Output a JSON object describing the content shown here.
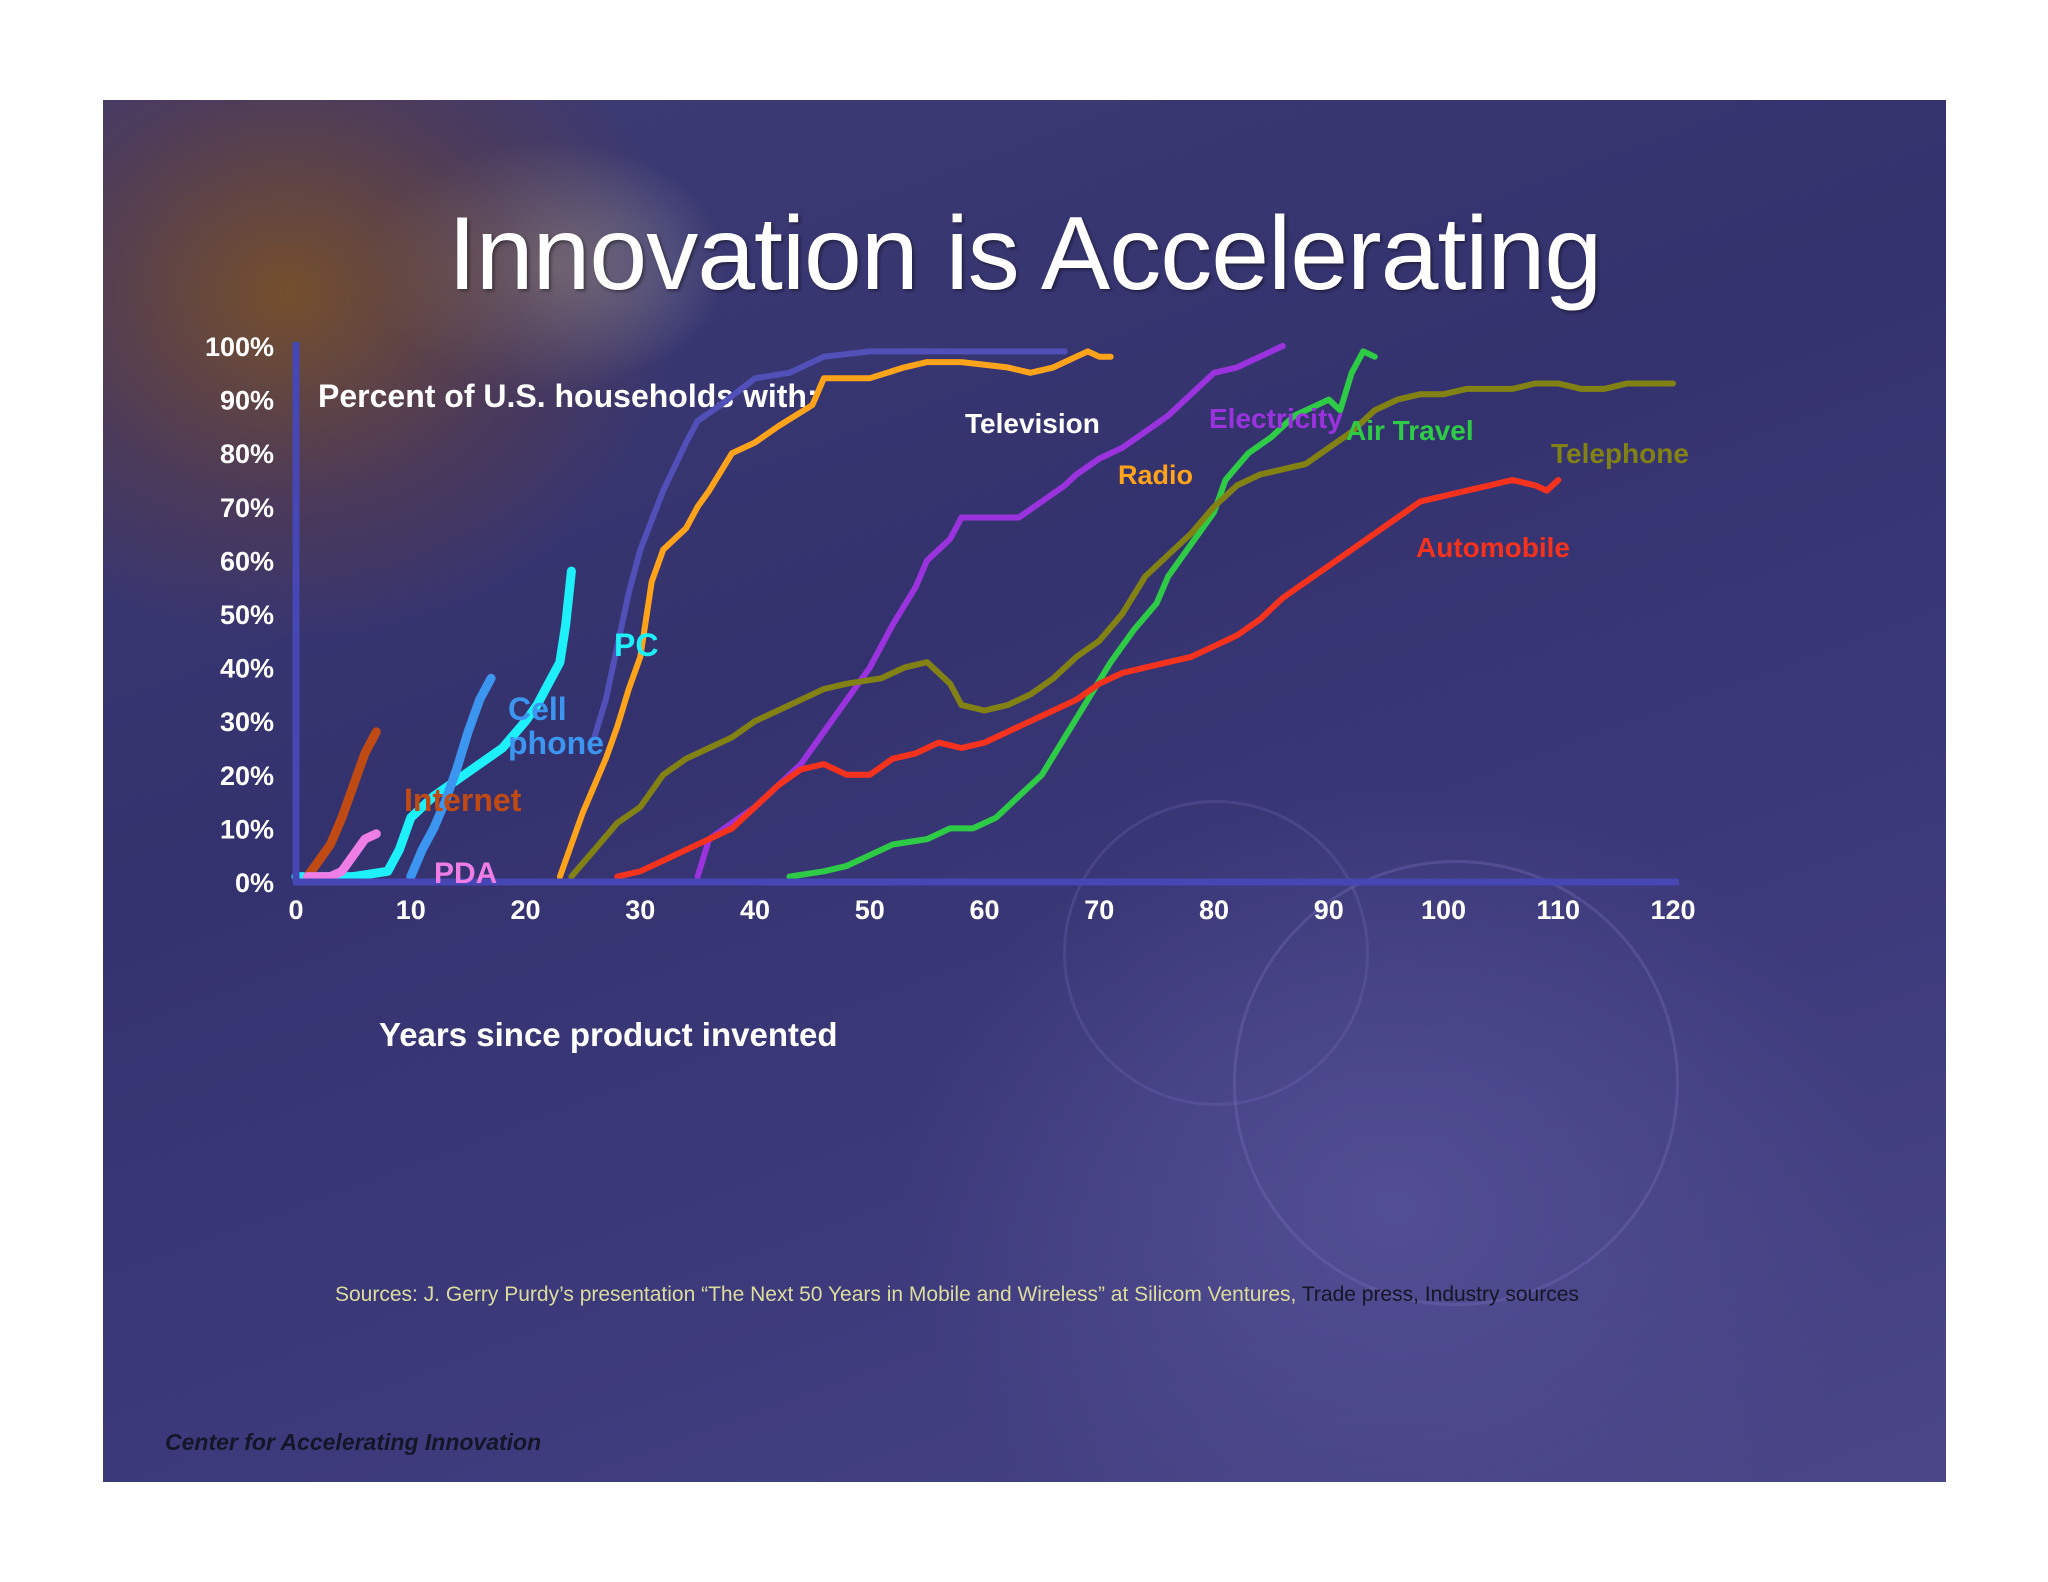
{
  "slide": {
    "title": "Innovation is Accelerating",
    "sources": {
      "main": "Sources:  J. Gerry Purdy’s presentation “The Next 50 Years in Mobile and Wireless” at Silicom Ventures,",
      "trade": " Trade press",
      "sep": ",",
      "industry": " Industry sources"
    },
    "footer": "Center for Accelerating Innovation"
  },
  "chart_data": {
    "type": "line",
    "title": "Percent of U.S. households with:",
    "xlabel": "Years since product invented",
    "ylabel": "",
    "xlim": [
      0,
      120
    ],
    "ylim": [
      0,
      100
    ],
    "x_ticks": [
      0,
      10,
      20,
      30,
      40,
      50,
      60,
      70,
      80,
      90,
      100,
      110,
      120
    ],
    "y_ticks": [
      0,
      10,
      20,
      30,
      40,
      50,
      60,
      70,
      80,
      90,
      100
    ],
    "x_tick_labels": [
      "0",
      "10",
      "20",
      "30",
      "40",
      "50",
      "60",
      "70",
      "80",
      "90",
      "100",
      "110",
      "120"
    ],
    "y_tick_labels": [
      "0%",
      "10%",
      "20%",
      "30%",
      "40%",
      "50%",
      "60%",
      "70%",
      "80%",
      "90%",
      "100%"
    ],
    "axis_color": "#4646b4",
    "series": [
      {
        "name": "Television",
        "label_lines": [
          "Television"
        ],
        "color": "#5050b8",
        "points": [
          [
            26,
            27
          ],
          [
            27,
            34
          ],
          [
            28,
            44
          ],
          [
            29,
            54
          ],
          [
            30,
            62
          ],
          [
            32,
            73
          ],
          [
            34,
            82
          ],
          [
            35,
            86
          ],
          [
            37,
            89
          ],
          [
            40,
            94
          ],
          [
            43,
            95
          ],
          [
            46,
            98
          ],
          [
            50,
            99
          ],
          [
            55,
            99
          ],
          [
            62,
            99
          ],
          [
            67,
            99
          ]
        ]
      },
      {
        "name": "Radio",
        "label_lines": [
          "Radio"
        ],
        "color": "#ffa31a",
        "points": [
          [
            23,
            1
          ],
          [
            25,
            13
          ],
          [
            27,
            23
          ],
          [
            28,
            29
          ],
          [
            29,
            36
          ],
          [
            30,
            42
          ],
          [
            31,
            56
          ],
          [
            32,
            62
          ],
          [
            34,
            66
          ],
          [
            35,
            70
          ],
          [
            36,
            73
          ],
          [
            38,
            80
          ],
          [
            40,
            82
          ],
          [
            42,
            85
          ],
          [
            45,
            89
          ],
          [
            46,
            94
          ],
          [
            50,
            94
          ],
          [
            53,
            96
          ],
          [
            55,
            97
          ],
          [
            58,
            97
          ],
          [
            62,
            96
          ],
          [
            64,
            95
          ],
          [
            66,
            96
          ],
          [
            68,
            98
          ],
          [
            69,
            99
          ],
          [
            70,
            98
          ],
          [
            71,
            98
          ]
        ]
      },
      {
        "name": "Electricity",
        "label_lines": [
          "Electricity"
        ],
        "color": "#9a33dd",
        "points": [
          [
            35,
            1
          ],
          [
            36,
            8
          ],
          [
            38,
            11
          ],
          [
            40,
            14
          ],
          [
            42,
            18
          ],
          [
            44,
            22
          ],
          [
            46,
            28
          ],
          [
            48,
            34
          ],
          [
            50,
            40
          ],
          [
            52,
            48
          ],
          [
            54,
            55
          ],
          [
            55,
            60
          ],
          [
            57,
            64
          ],
          [
            58,
            68
          ],
          [
            60,
            68
          ],
          [
            63,
            68
          ],
          [
            65,
            71
          ],
          [
            67,
            74
          ],
          [
            68,
            76
          ],
          [
            70,
            79
          ],
          [
            72,
            81
          ],
          [
            74,
            84
          ],
          [
            76,
            87
          ],
          [
            78,
            91
          ],
          [
            80,
            95
          ],
          [
            82,
            96
          ],
          [
            84,
            98
          ],
          [
            86,
            100
          ]
        ]
      },
      {
        "name": "Air Travel",
        "label_lines": [
          "Air Travel"
        ],
        "color": "#2ecc46",
        "points": [
          [
            43,
            1
          ],
          [
            46,
            2
          ],
          [
            48,
            3
          ],
          [
            50,
            5
          ],
          [
            52,
            7
          ],
          [
            55,
            8
          ],
          [
            57,
            10
          ],
          [
            59,
            10
          ],
          [
            61,
            12
          ],
          [
            63,
            16
          ],
          [
            65,
            20
          ],
          [
            67,
            27
          ],
          [
            69,
            34
          ],
          [
            71,
            41
          ],
          [
            73,
            47
          ],
          [
            75,
            52
          ],
          [
            76,
            57
          ],
          [
            78,
            63
          ],
          [
            80,
            69
          ],
          [
            81,
            75
          ],
          [
            83,
            80
          ],
          [
            85,
            83
          ],
          [
            87,
            87
          ],
          [
            89,
            89
          ],
          [
            90,
            90
          ],
          [
            91,
            88
          ],
          [
            92,
            95
          ],
          [
            93,
            99
          ],
          [
            94,
            98
          ]
        ]
      },
      {
        "name": "Telephone",
        "label_lines": [
          "Telephone"
        ],
        "color": "#828214",
        "points": [
          [
            24,
            1
          ],
          [
            26,
            6
          ],
          [
            28,
            11
          ],
          [
            30,
            14
          ],
          [
            32,
            20
          ],
          [
            34,
            23
          ],
          [
            36,
            25
          ],
          [
            38,
            27
          ],
          [
            40,
            30
          ],
          [
            42,
            32
          ],
          [
            44,
            34
          ],
          [
            46,
            36
          ],
          [
            48,
            37
          ],
          [
            51,
            38
          ],
          [
            53,
            40
          ],
          [
            55,
            41
          ],
          [
            57,
            37
          ],
          [
            58,
            33
          ],
          [
            60,
            32
          ],
          [
            62,
            33
          ],
          [
            64,
            35
          ],
          [
            66,
            38
          ],
          [
            68,
            42
          ],
          [
            70,
            45
          ],
          [
            72,
            50
          ],
          [
            74,
            57
          ],
          [
            76,
            61
          ],
          [
            78,
            65
          ],
          [
            80,
            70
          ],
          [
            82,
            74
          ],
          [
            84,
            76
          ],
          [
            86,
            77
          ],
          [
            88,
            78
          ],
          [
            90,
            81
          ],
          [
            92,
            84
          ],
          [
            94,
            88
          ],
          [
            96,
            90
          ],
          [
            98,
            91
          ],
          [
            100,
            91
          ],
          [
            102,
            92
          ],
          [
            104,
            92
          ],
          [
            106,
            92
          ],
          [
            108,
            93
          ],
          [
            110,
            93
          ],
          [
            112,
            92
          ],
          [
            114,
            92
          ],
          [
            116,
            93
          ],
          [
            118,
            93
          ],
          [
            120,
            93
          ]
        ]
      },
      {
        "name": "Automobile",
        "label_lines": [
          "Automobile"
        ],
        "color": "#f5321e",
        "points": [
          [
            28,
            1
          ],
          [
            30,
            2
          ],
          [
            32,
            4
          ],
          [
            34,
            6
          ],
          [
            36,
            8
          ],
          [
            38,
            10
          ],
          [
            40,
            14
          ],
          [
            42,
            18
          ],
          [
            44,
            21
          ],
          [
            46,
            22
          ],
          [
            48,
            20
          ],
          [
            50,
            20
          ],
          [
            52,
            23
          ],
          [
            54,
            24
          ],
          [
            56,
            26
          ],
          [
            58,
            25
          ],
          [
            60,
            26
          ],
          [
            62,
            28
          ],
          [
            64,
            30
          ],
          [
            66,
            32
          ],
          [
            68,
            34
          ],
          [
            70,
            37
          ],
          [
            72,
            39
          ],
          [
            74,
            40
          ],
          [
            76,
            41
          ],
          [
            78,
            42
          ],
          [
            80,
            44
          ],
          [
            82,
            46
          ],
          [
            84,
            49
          ],
          [
            86,
            53
          ],
          [
            88,
            56
          ],
          [
            90,
            59
          ],
          [
            92,
            62
          ],
          [
            94,
            65
          ],
          [
            96,
            68
          ],
          [
            98,
            71
          ],
          [
            100,
            72
          ],
          [
            102,
            73
          ],
          [
            104,
            74
          ],
          [
            106,
            75
          ],
          [
            108,
            74
          ],
          [
            109,
            73
          ],
          [
            110,
            75
          ]
        ]
      },
      {
        "name": "PC",
        "label_lines": [
          "PC"
        ],
        "color": "#1ef0fa",
        "points": [
          [
            0,
            1
          ],
          [
            5,
            1
          ],
          [
            8,
            2
          ],
          [
            9,
            6
          ],
          [
            10,
            12
          ],
          [
            12,
            16
          ],
          [
            14,
            19
          ],
          [
            16,
            22
          ],
          [
            18,
            25
          ],
          [
            20,
            30
          ],
          [
            21,
            33
          ],
          [
            22,
            37
          ],
          [
            23,
            41
          ],
          [
            23.5,
            48
          ],
          [
            24,
            58
          ]
        ]
      },
      {
        "name": "Cell phone",
        "label_lines": [
          "Cell",
          "phone"
        ],
        "color": "#3c96f0",
        "points": [
          [
            10,
            1
          ],
          [
            11,
            6
          ],
          [
            12,
            10
          ],
          [
            13,
            15
          ],
          [
            14,
            21
          ],
          [
            15,
            28
          ],
          [
            16,
            34
          ],
          [
            17,
            38
          ]
        ]
      },
      {
        "name": "Internet",
        "label_lines": [
          "Internet"
        ],
        "color": "#c04a14",
        "points": [
          [
            1,
            1
          ],
          [
            2,
            4
          ],
          [
            3,
            7
          ],
          [
            4,
            12
          ],
          [
            5,
            18
          ],
          [
            6,
            24
          ],
          [
            7,
            28
          ]
        ]
      },
      {
        "name": "PDA",
        "label_lines": [
          "PDA"
        ],
        "color": "#ee7ee6",
        "points": [
          [
            1,
            1
          ],
          [
            3,
            1
          ],
          [
            4,
            2
          ],
          [
            5,
            5
          ],
          [
            6,
            8
          ],
          [
            7,
            9
          ]
        ]
      }
    ]
  }
}
